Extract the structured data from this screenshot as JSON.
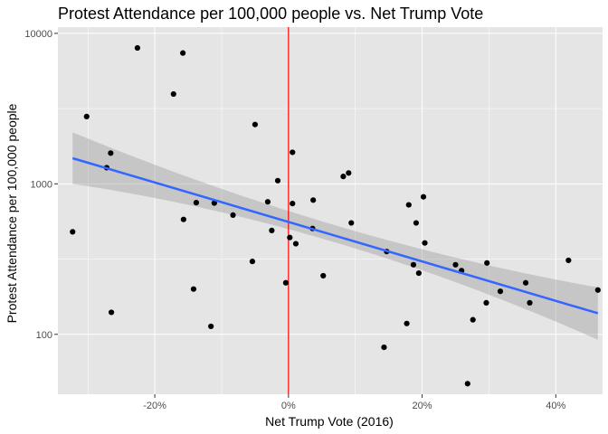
{
  "colors": {
    "panel_bg": "#e5e5e5",
    "grid_major": "#ffffff",
    "point": "#000000",
    "fit_line": "#3366ff",
    "ribbon": "#999999",
    "ref_line": "#ff0000"
  },
  "chart_data": {
    "type": "scatter",
    "title": "Protest Attendance per 100,000 people vs. Net Trump Vote",
    "xlabel": "Net Trump Vote (2016)",
    "ylabel": "Protest Attendance per 100,000 people",
    "x_scale": "linear",
    "y_scale": "log10",
    "xlim": [
      -0.345,
      0.47
    ],
    "ylim": [
      40,
      11000
    ],
    "x_ticks": [
      {
        "value": -0.2,
        "label": "-20%"
      },
      {
        "value": 0.0,
        "label": "0%"
      },
      {
        "value": 0.2,
        "label": "20%"
      },
      {
        "value": 0.4,
        "label": "40%"
      }
    ],
    "y_ticks": [
      {
        "value": 100,
        "label": "100"
      },
      {
        "value": 1000,
        "label": "1000"
      },
      {
        "value": 10000,
        "label": "10000"
      }
    ],
    "grid": true,
    "reference_line": {
      "x": 0.0
    },
    "points": [
      {
        "x": -0.323,
        "y": 480
      },
      {
        "x": -0.302,
        "y": 2800
      },
      {
        "x": -0.272,
        "y": 1280
      },
      {
        "x": -0.266,
        "y": 1600
      },
      {
        "x": -0.265,
        "y": 140
      },
      {
        "x": -0.226,
        "y": 8000
      },
      {
        "x": -0.172,
        "y": 3950
      },
      {
        "x": -0.158,
        "y": 7400
      },
      {
        "x": -0.157,
        "y": 580
      },
      {
        "x": -0.142,
        "y": 200
      },
      {
        "x": -0.138,
        "y": 750
      },
      {
        "x": -0.116,
        "y": 113
      },
      {
        "x": -0.111,
        "y": 745
      },
      {
        "x": -0.083,
        "y": 620
      },
      {
        "x": -0.054,
        "y": 305
      },
      {
        "x": -0.05,
        "y": 2480
      },
      {
        "x": -0.031,
        "y": 760
      },
      {
        "x": -0.025,
        "y": 490
      },
      {
        "x": -0.016,
        "y": 1050
      },
      {
        "x": -0.004,
        "y": 220
      },
      {
        "x": 0.002,
        "y": 440
      },
      {
        "x": 0.006,
        "y": 1620
      },
      {
        "x": 0.006,
        "y": 740
      },
      {
        "x": 0.011,
        "y": 400
      },
      {
        "x": 0.036,
        "y": 505
      },
      {
        "x": 0.037,
        "y": 780
      },
      {
        "x": 0.052,
        "y": 245
      },
      {
        "x": 0.082,
        "y": 1120
      },
      {
        "x": 0.09,
        "y": 1180
      },
      {
        "x": 0.094,
        "y": 550
      },
      {
        "x": 0.143,
        "y": 82
      },
      {
        "x": 0.147,
        "y": 355
      },
      {
        "x": 0.177,
        "y": 118
      },
      {
        "x": 0.18,
        "y": 725
      },
      {
        "x": 0.187,
        "y": 290
      },
      {
        "x": 0.191,
        "y": 550
      },
      {
        "x": 0.195,
        "y": 255
      },
      {
        "x": 0.202,
        "y": 820
      },
      {
        "x": 0.204,
        "y": 405
      },
      {
        "x": 0.25,
        "y": 290
      },
      {
        "x": 0.259,
        "y": 265
      },
      {
        "x": 0.268,
        "y": 47
      },
      {
        "x": 0.276,
        "y": 125
      },
      {
        "x": 0.296,
        "y": 162
      },
      {
        "x": 0.297,
        "y": 298
      },
      {
        "x": 0.317,
        "y": 193
      },
      {
        "x": 0.355,
        "y": 220
      },
      {
        "x": 0.361,
        "y": 162
      },
      {
        "x": 0.419,
        "y": 310
      },
      {
        "x": 0.463,
        "y": 197
      }
    ],
    "fit": {
      "method": "linear regression (log y)",
      "x_start": -0.323,
      "x_end": 0.463,
      "y_start": 1480,
      "y_end": 138,
      "ci_upper_start": 2200,
      "ci_lower_start": 1000,
      "ci_upper_end": 205,
      "ci_lower_end": 92,
      "ci_at_center": {
        "x": 0.0,
        "y_low": 500,
        "y_high": 660
      }
    }
  }
}
